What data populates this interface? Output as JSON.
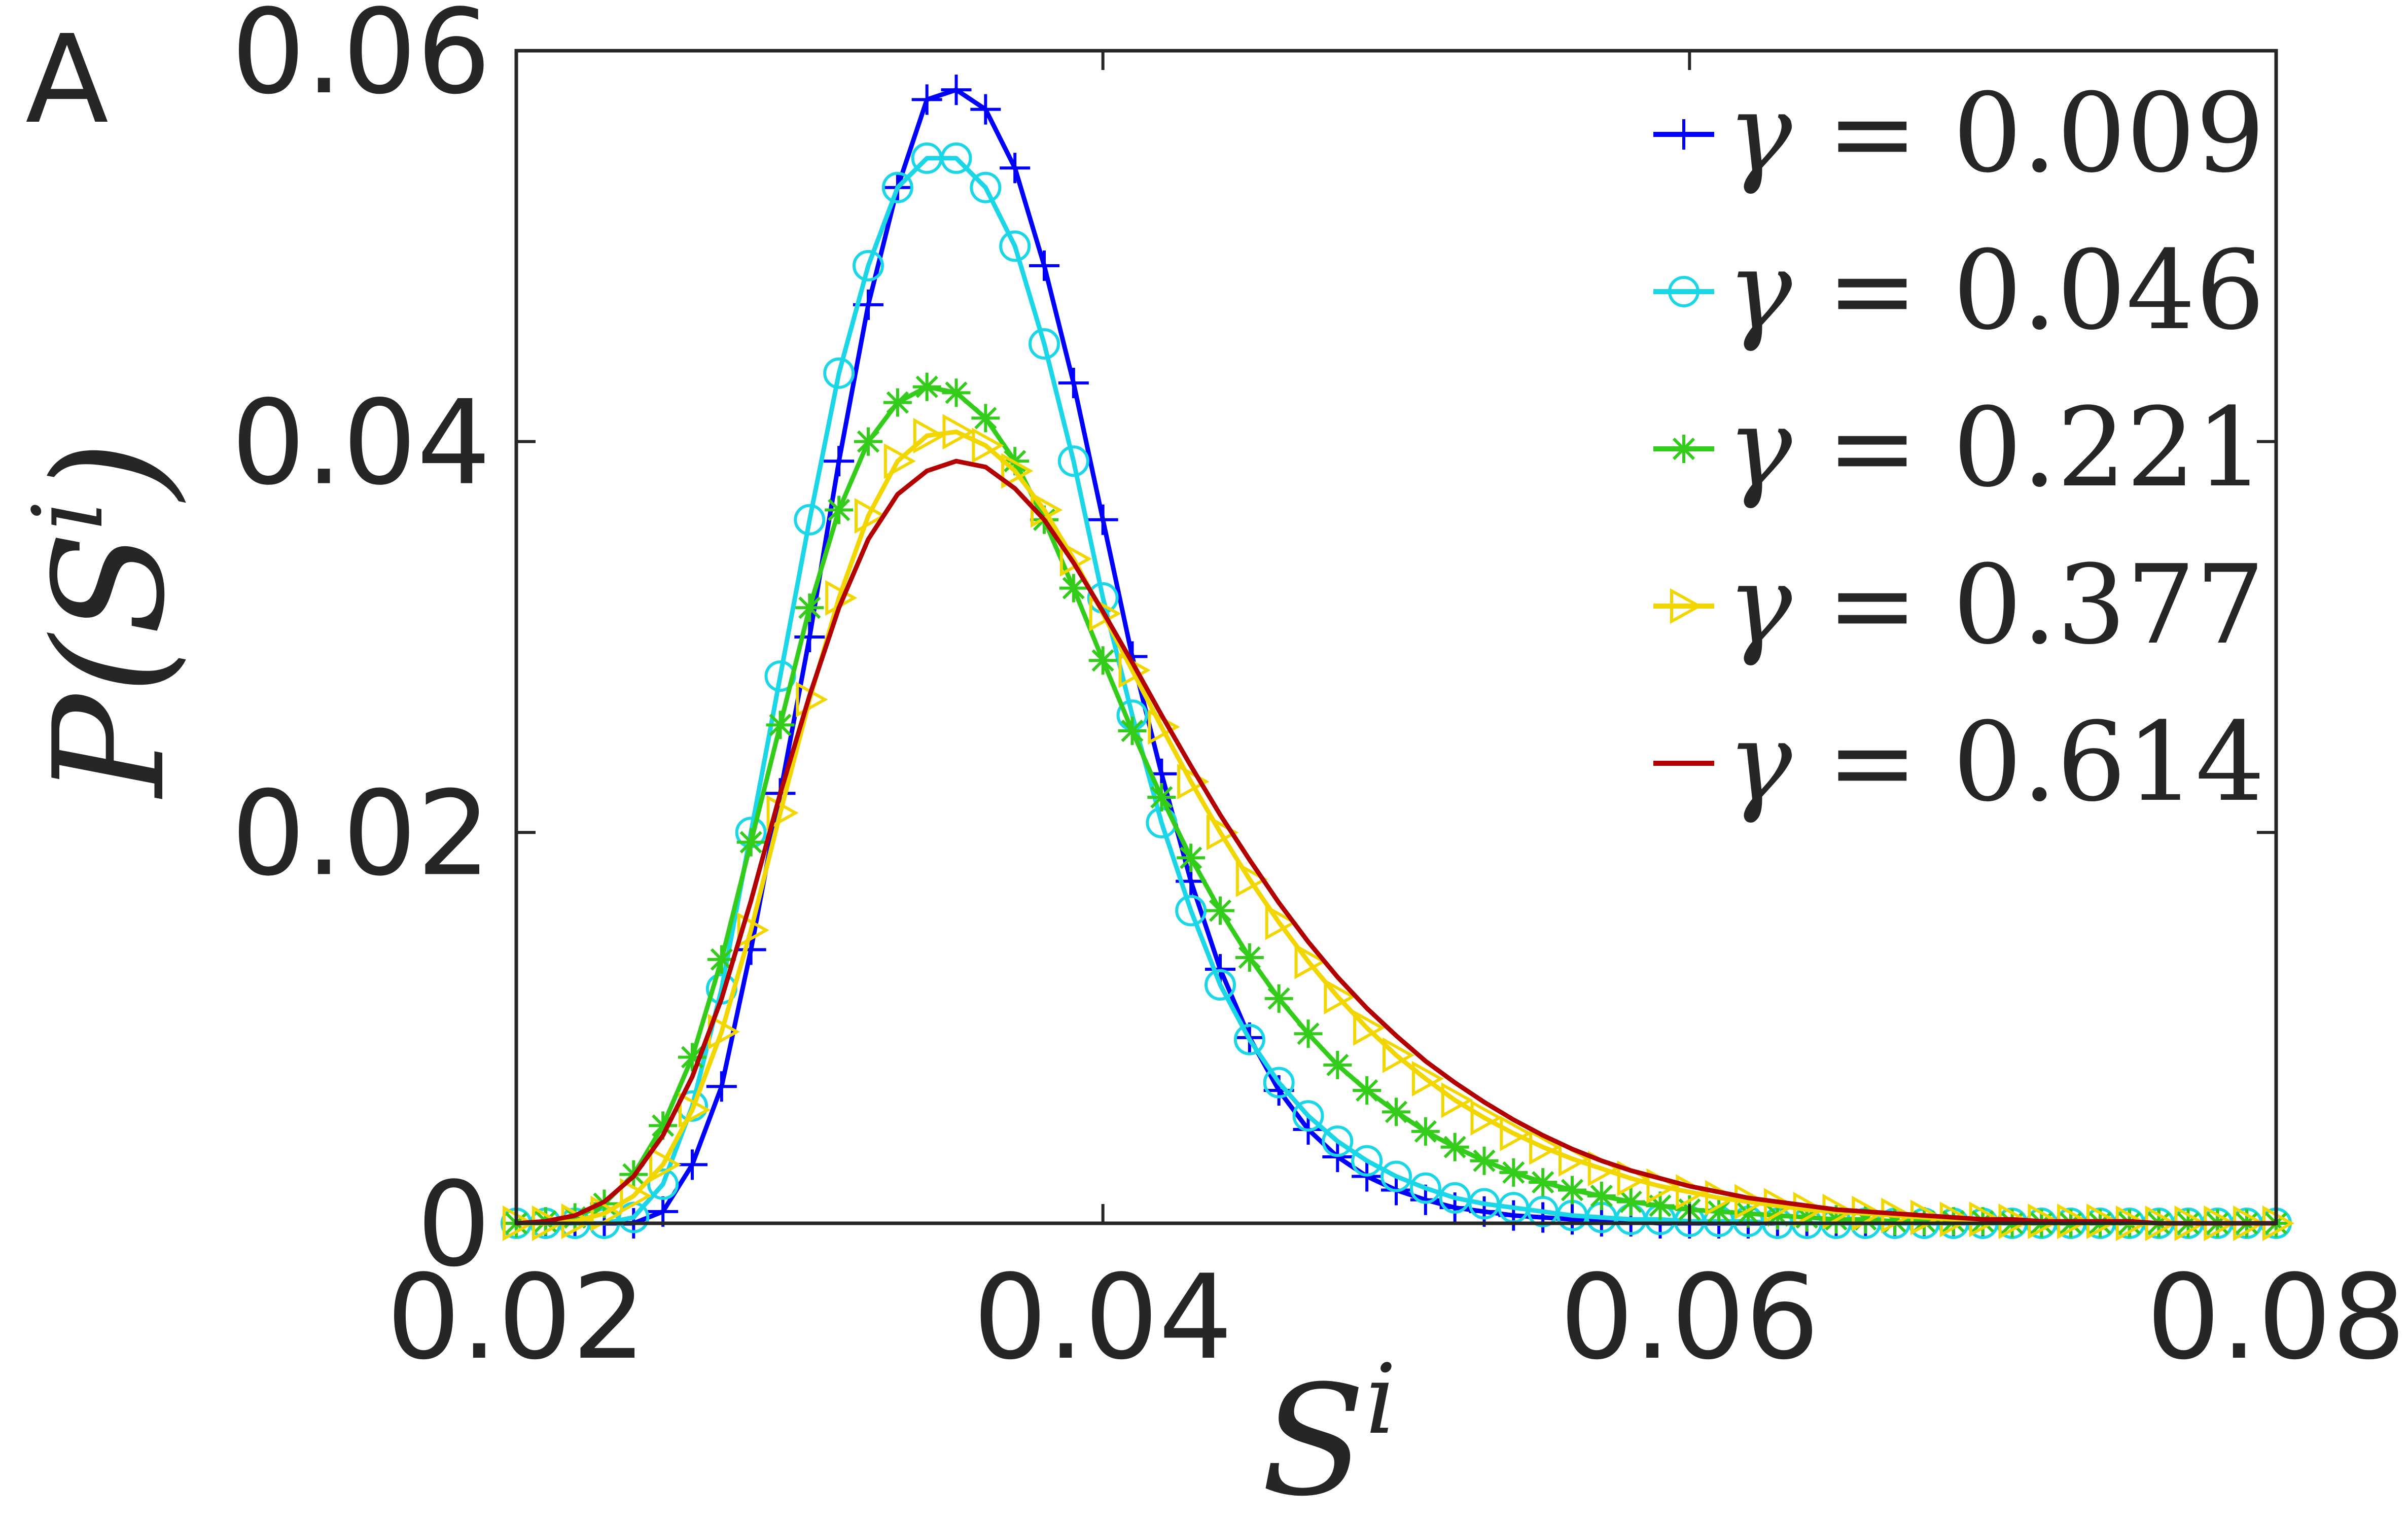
{
  "chart_data": {
    "type": "line",
    "panel_label": "A",
    "xlabel": {
      "base": "S",
      "sup": "i"
    },
    "ylabel": {
      "prefix": "P(",
      "base": "S",
      "sup": "i",
      "suffix": ")"
    },
    "xlim": [
      0.02,
      0.08
    ],
    "ylim": [
      0,
      0.06
    ],
    "x_ticks": [
      0.02,
      0.04,
      0.06,
      0.08
    ],
    "x_tick_labels": [
      "0.02",
      "0.04",
      "0.06",
      "0.08"
    ],
    "y_ticks": [
      0,
      0.02,
      0.04,
      0.06
    ],
    "y_tick_labels": [
      "0",
      "0.02",
      "0.04",
      "0.06"
    ],
    "grid": false,
    "legend_position": "top-right",
    "series": [
      {
        "name": "γ = 0.009",
        "symbol": "γ",
        "label_value": "= 0.009",
        "color": "#0000ff",
        "marker": "plus",
        "x": [
          0.02,
          0.021,
          0.022,
          0.023,
          0.024,
          0.025,
          0.026,
          0.027,
          0.028,
          0.029,
          0.03,
          0.031,
          0.032,
          0.033,
          0.034,
          0.035,
          0.036,
          0.037,
          0.038,
          0.039,
          0.04,
          0.041,
          0.042,
          0.043,
          0.044,
          0.045,
          0.046,
          0.047,
          0.048,
          0.049,
          0.05,
          0.051,
          0.052,
          0.053,
          0.054,
          0.055,
          0.056,
          0.057,
          0.058,
          0.059,
          0.06,
          0.061,
          0.062,
          0.063,
          0.064,
          0.065,
          0.066,
          0.067,
          0.068,
          0.069,
          0.07,
          0.071,
          0.072,
          0.073,
          0.074,
          0.075,
          0.076,
          0.077,
          0.078,
          0.079,
          0.08
        ],
        "y": [
          0.0,
          0.0,
          0.0,
          0.0,
          0.0,
          0.0006,
          0.003,
          0.007,
          0.014,
          0.022,
          0.03,
          0.039,
          0.047,
          0.053,
          0.0575,
          0.058,
          0.057,
          0.054,
          0.049,
          0.043,
          0.036,
          0.029,
          0.023,
          0.0175,
          0.013,
          0.0095,
          0.0068,
          0.0048,
          0.0034,
          0.0024,
          0.0017,
          0.0012,
          0.0008,
          0.0006,
          0.0004,
          0.0003,
          0.0002,
          0.0001,
          0.0001,
          0.0,
          0.0,
          0.0,
          0.0,
          0.0,
          0.0,
          0.0,
          0.0,
          0.0,
          0.0,
          0.0,
          0.0,
          0.0,
          0.0,
          0.0,
          0.0,
          0.0,
          0.0,
          0.0,
          0.0,
          0.0,
          0.0
        ]
      },
      {
        "name": "γ = 0.046",
        "symbol": "γ",
        "label_value": "= 0.046",
        "color": "#1ad6e6",
        "marker": "circle",
        "x": [
          0.02,
          0.021,
          0.022,
          0.023,
          0.024,
          0.025,
          0.026,
          0.027,
          0.028,
          0.029,
          0.03,
          0.031,
          0.032,
          0.033,
          0.034,
          0.035,
          0.036,
          0.037,
          0.038,
          0.039,
          0.04,
          0.041,
          0.042,
          0.043,
          0.044,
          0.045,
          0.046,
          0.047,
          0.048,
          0.049,
          0.05,
          0.051,
          0.052,
          0.053,
          0.054,
          0.055,
          0.056,
          0.057,
          0.058,
          0.059,
          0.06,
          0.061,
          0.062,
          0.063,
          0.064,
          0.065,
          0.066,
          0.067,
          0.068,
          0.069,
          0.07,
          0.071,
          0.072,
          0.073,
          0.074,
          0.075,
          0.076,
          0.077,
          0.078,
          0.079,
          0.08
        ],
        "y": [
          0.0,
          0.0,
          0.0,
          0.0,
          0.0003,
          0.002,
          0.006,
          0.012,
          0.02,
          0.028,
          0.036,
          0.0435,
          0.049,
          0.053,
          0.0545,
          0.0545,
          0.053,
          0.05,
          0.045,
          0.039,
          0.032,
          0.026,
          0.0205,
          0.016,
          0.0122,
          0.0094,
          0.0072,
          0.0055,
          0.0042,
          0.0032,
          0.0024,
          0.0018,
          0.0013,
          0.001,
          0.0008,
          0.0006,
          0.0004,
          0.0003,
          0.0002,
          0.0002,
          0.0001,
          0.0001,
          0.0001,
          0.0,
          0.0,
          0.0,
          0.0,
          0.0,
          0.0,
          0.0,
          0.0,
          0.0,
          0.0,
          0.0,
          0.0,
          0.0,
          0.0,
          0.0,
          0.0,
          0.0,
          0.0
        ]
      },
      {
        "name": "γ = 0.221",
        "symbol": "γ",
        "label_value": "= 0.221",
        "color": "#33cc1a",
        "marker": "asterisk",
        "x": [
          0.02,
          0.021,
          0.022,
          0.023,
          0.024,
          0.025,
          0.026,
          0.027,
          0.028,
          0.029,
          0.03,
          0.031,
          0.032,
          0.033,
          0.034,
          0.035,
          0.036,
          0.037,
          0.038,
          0.039,
          0.04,
          0.041,
          0.042,
          0.043,
          0.044,
          0.045,
          0.046,
          0.047,
          0.048,
          0.049,
          0.05,
          0.051,
          0.052,
          0.053,
          0.054,
          0.055,
          0.056,
          0.057,
          0.058,
          0.059,
          0.06,
          0.061,
          0.062,
          0.063,
          0.064,
          0.065,
          0.066,
          0.067,
          0.068,
          0.069,
          0.07,
          0.071,
          0.072,
          0.073,
          0.074,
          0.075,
          0.076,
          0.077,
          0.078,
          0.079,
          0.08
        ],
        "y": [
          0.0,
          0.0001,
          0.0003,
          0.001,
          0.0025,
          0.005,
          0.0085,
          0.0135,
          0.0195,
          0.0255,
          0.0315,
          0.0365,
          0.04,
          0.042,
          0.0428,
          0.0425,
          0.0412,
          0.039,
          0.036,
          0.0325,
          0.0288,
          0.0252,
          0.0218,
          0.0187,
          0.016,
          0.0136,
          0.0115,
          0.0097,
          0.0081,
          0.0068,
          0.0057,
          0.0047,
          0.0039,
          0.0032,
          0.0026,
          0.0021,
          0.0017,
          0.0014,
          0.0011,
          0.0009,
          0.0007,
          0.0006,
          0.0005,
          0.0004,
          0.0003,
          0.0002,
          0.0002,
          0.0001,
          0.0001,
          0.0001,
          0.0001,
          0.0,
          0.0,
          0.0,
          0.0,
          0.0,
          0.0,
          0.0,
          0.0,
          0.0,
          0.0
        ]
      },
      {
        "name": "γ = 0.377",
        "symbol": "γ",
        "label_value": "= 0.377",
        "color": "#f2d600",
        "marker": "triangle-right",
        "x": [
          0.02,
          0.021,
          0.022,
          0.023,
          0.024,
          0.025,
          0.026,
          0.027,
          0.028,
          0.029,
          0.03,
          0.031,
          0.032,
          0.033,
          0.034,
          0.035,
          0.036,
          0.037,
          0.038,
          0.039,
          0.04,
          0.041,
          0.042,
          0.043,
          0.044,
          0.045,
          0.046,
          0.047,
          0.048,
          0.049,
          0.05,
          0.051,
          0.052,
          0.053,
          0.054,
          0.055,
          0.056,
          0.057,
          0.058,
          0.059,
          0.06,
          0.061,
          0.062,
          0.063,
          0.064,
          0.065,
          0.066,
          0.067,
          0.068,
          0.069,
          0.07,
          0.071,
          0.072,
          0.073,
          0.074,
          0.075,
          0.076,
          0.077,
          0.078,
          0.079,
          0.08
        ],
        "y": [
          0.0,
          0.0,
          0.0001,
          0.0005,
          0.0014,
          0.003,
          0.0058,
          0.0098,
          0.015,
          0.021,
          0.0268,
          0.032,
          0.0362,
          0.039,
          0.0403,
          0.0405,
          0.0398,
          0.0385,
          0.0365,
          0.034,
          0.0312,
          0.0283,
          0.0254,
          0.0226,
          0.02,
          0.0176,
          0.0154,
          0.0134,
          0.0116,
          0.01,
          0.0086,
          0.0074,
          0.0063,
          0.0054,
          0.0046,
          0.0039,
          0.0033,
          0.0028,
          0.0023,
          0.0019,
          0.0016,
          0.0013,
          0.0011,
          0.0009,
          0.0007,
          0.0006,
          0.0005,
          0.0004,
          0.0003,
          0.0002,
          0.0002,
          0.0001,
          0.0001,
          0.0001,
          0.0001,
          0.0,
          0.0,
          0.0,
          0.0,
          0.0,
          0.0
        ]
      },
      {
        "name": "γ = 0.614",
        "symbol": "γ",
        "label_value": "= 0.614",
        "color": "#b30000",
        "marker": "none",
        "x": [
          0.02,
          0.021,
          0.022,
          0.023,
          0.024,
          0.025,
          0.026,
          0.027,
          0.028,
          0.029,
          0.03,
          0.031,
          0.032,
          0.033,
          0.034,
          0.035,
          0.036,
          0.037,
          0.038,
          0.039,
          0.04,
          0.041,
          0.042,
          0.043,
          0.044,
          0.045,
          0.046,
          0.047,
          0.048,
          0.049,
          0.05,
          0.051,
          0.052,
          0.053,
          0.054,
          0.055,
          0.056,
          0.057,
          0.058,
          0.059,
          0.06,
          0.061,
          0.062,
          0.063,
          0.064,
          0.065,
          0.066,
          0.067,
          0.068,
          0.069,
          0.07,
          0.071,
          0.072,
          0.073,
          0.074,
          0.075,
          0.076,
          0.077,
          0.078,
          0.079,
          0.08
        ],
        "y": [
          0.0,
          0.0001,
          0.0004,
          0.0011,
          0.0024,
          0.0045,
          0.0075,
          0.0115,
          0.0165,
          0.022,
          0.027,
          0.0315,
          0.035,
          0.0373,
          0.0385,
          0.039,
          0.0387,
          0.0376,
          0.036,
          0.0338,
          0.0313,
          0.0287,
          0.026,
          0.0234,
          0.0209,
          0.0186,
          0.0164,
          0.0144,
          0.0126,
          0.011,
          0.0096,
          0.0083,
          0.0072,
          0.0062,
          0.0053,
          0.0045,
          0.0038,
          0.0032,
          0.0027,
          0.0023,
          0.0019,
          0.0016,
          0.0013,
          0.0011,
          0.0009,
          0.0007,
          0.0006,
          0.0005,
          0.0004,
          0.0003,
          0.0002,
          0.0002,
          0.0001,
          0.0001,
          0.0001,
          0.0001,
          0.0,
          0.0,
          0.0,
          0.0,
          0.0
        ]
      }
    ]
  }
}
